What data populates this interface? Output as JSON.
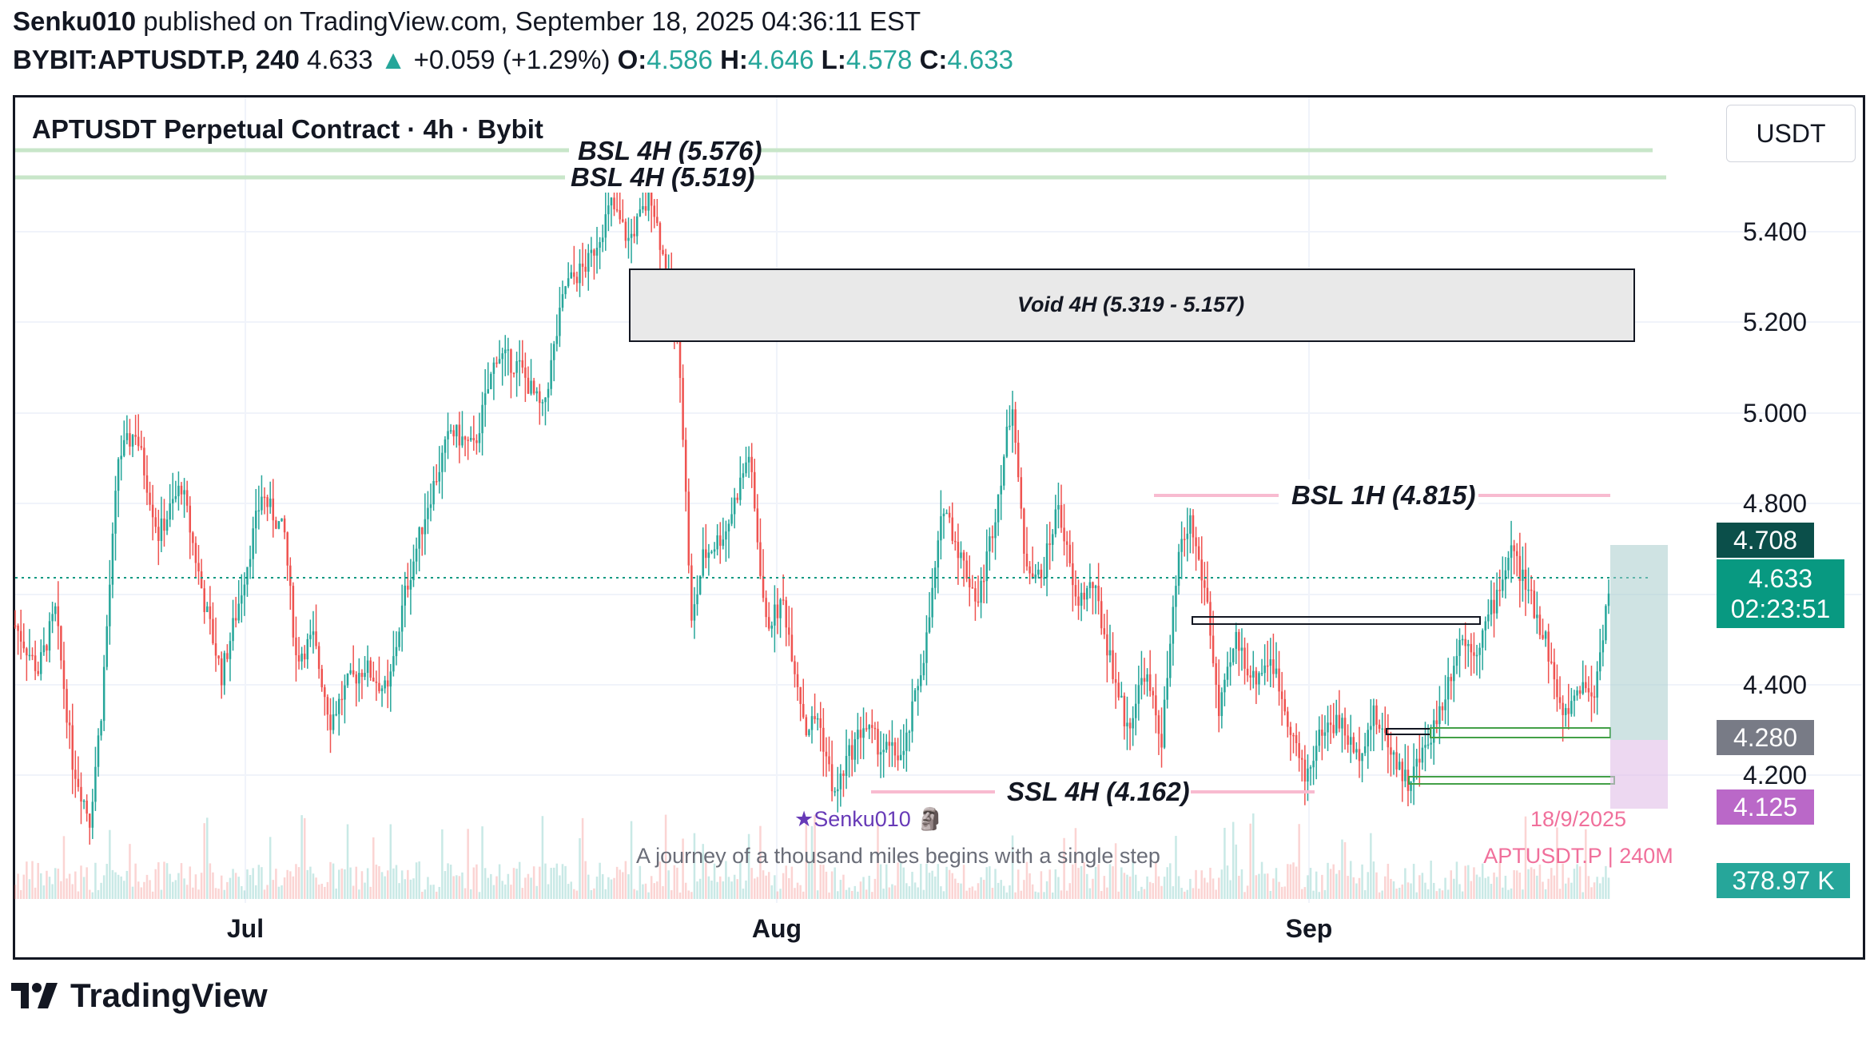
{
  "header": {
    "author": "Senku010",
    "published_text": "published on TradingView.com, September 18, 2025 04:36:11 EST",
    "symbol": "BYBIT:APTUSDT.P, 240",
    "last": "4.633",
    "change_icon": "triangle-up-icon",
    "change": "+0.059 (+1.29%)",
    "o_label": "O:",
    "o": "4.586",
    "h_label": "H:",
    "h": "4.646",
    "l_label": "L:",
    "l": "4.578",
    "c_label": "C:",
    "c": "4.633"
  },
  "chart": {
    "title": "APTUSDT Perpetual Contract · 4h · Bybit",
    "currency": "USDT",
    "watermark_user": "★Senku010 🗿",
    "tagline": "A journey of a thousand miles begins with a single step",
    "date_stamp": "18/9/2025",
    "symbol_stamp": "APTUSDT.P | 240M",
    "labels": {
      "bsl_4h_a": "BSL 4H (5.576)",
      "bsl_4h_b": "BSL 4H (5.519)",
      "void": "Void 4H (5.319 - 5.157)",
      "bsl_1h": "BSL 1H (4.815)",
      "ssl_4h": "SSL 4H (4.162)"
    },
    "price_badges": {
      "target": "4.708",
      "current": "4.633",
      "countdown": "02:23:51",
      "stop": "4.280",
      "low": "4.125",
      "volume": "378.97 K"
    },
    "colors": {
      "up": "#26a69a",
      "down": "#ef5350",
      "bsl4h": "#c8e6c9",
      "bsl1h": "#f8bbd0",
      "target_badge": "#0b4f4a",
      "current_badge": "#089981",
      "stop_badge": "#787b86",
      "low_badge": "#ba68c8",
      "volume_badge": "#26a69a"
    }
  },
  "footer": {
    "logo_icon": "tradingview-logo-icon",
    "brand": "TradingView"
  },
  "chart_data": {
    "type": "candlestick",
    "title": "APTUSDT Perpetual Contract · 4h · Bybit",
    "ylim": [
      4.05,
      5.62
    ],
    "y_ticks": [
      "5.400",
      "5.200",
      "5.000",
      "4.800",
      "4.400",
      "4.200"
    ],
    "x_ticks": [
      "Jul",
      "Aug",
      "Sep"
    ],
    "anchor_path": [
      [
        0,
        4.55
      ],
      [
        8,
        4.45
      ],
      [
        14,
        4.58
      ],
      [
        20,
        4.25
      ],
      [
        26,
        4.12
      ],
      [
        30,
        4.36
      ],
      [
        36,
        4.92
      ],
      [
        42,
        4.98
      ],
      [
        50,
        4.75
      ],
      [
        58,
        4.86
      ],
      [
        66,
        4.6
      ],
      [
        72,
        4.44
      ],
      [
        78,
        4.6
      ],
      [
        86,
        4.84
      ],
      [
        94,
        4.75
      ],
      [
        98,
        4.48
      ],
      [
        104,
        4.52
      ],
      [
        110,
        4.34
      ],
      [
        116,
        4.42
      ],
      [
        122,
        4.46
      ],
      [
        130,
        4.4
      ],
      [
        136,
        4.62
      ],
      [
        144,
        4.82
      ],
      [
        152,
        4.98
      ],
      [
        160,
        4.94
      ],
      [
        168,
        5.15
      ],
      [
        176,
        5.12
      ],
      [
        184,
        5.02
      ],
      [
        192,
        5.3
      ],
      [
        200,
        5.35
      ],
      [
        208,
        5.48
      ],
      [
        214,
        5.4
      ],
      [
        222,
        5.5
      ],
      [
        228,
        5.3
      ],
      [
        232,
        5.12
      ],
      [
        236,
        4.55
      ],
      [
        240,
        4.7
      ],
      [
        248,
        4.76
      ],
      [
        256,
        4.93
      ],
      [
        262,
        4.55
      ],
      [
        268,
        4.6
      ],
      [
        276,
        4.32
      ],
      [
        280,
        4.35
      ],
      [
        286,
        4.17
      ],
      [
        290,
        4.25
      ],
      [
        296,
        4.33
      ],
      [
        302,
        4.28
      ],
      [
        310,
        4.26
      ],
      [
        318,
        4.52
      ],
      [
        324,
        4.82
      ],
      [
        330,
        4.7
      ],
      [
        336,
        4.6
      ],
      [
        342,
        4.8
      ],
      [
        348,
        5.05
      ],
      [
        352,
        4.7
      ],
      [
        358,
        4.65
      ],
      [
        364,
        4.82
      ],
      [
        370,
        4.6
      ],
      [
        376,
        4.64
      ],
      [
        382,
        4.48
      ],
      [
        388,
        4.32
      ],
      [
        394,
        4.45
      ],
      [
        400,
        4.3
      ],
      [
        406,
        4.7
      ],
      [
        410,
        4.78
      ],
      [
        416,
        4.6
      ],
      [
        420,
        4.35
      ],
      [
        426,
        4.52
      ],
      [
        432,
        4.43
      ],
      [
        438,
        4.48
      ],
      [
        444,
        4.35
      ],
      [
        450,
        4.21
      ],
      [
        456,
        4.32
      ],
      [
        462,
        4.34
      ],
      [
        468,
        4.26
      ],
      [
        474,
        4.35
      ],
      [
        480,
        4.28
      ],
      [
        486,
        4.2
      ],
      [
        492,
        4.28
      ],
      [
        498,
        4.38
      ],
      [
        504,
        4.52
      ],
      [
        510,
        4.5
      ],
      [
        516,
        4.6
      ],
      [
        522,
        4.72
      ],
      [
        528,
        4.62
      ],
      [
        534,
        4.52
      ],
      [
        540,
        4.34
      ],
      [
        546,
        4.42
      ],
      [
        551,
        4.4
      ],
      [
        556,
        4.633
      ]
    ],
    "levels": [
      {
        "label": "BSL 4H",
        "value": 5.576
      },
      {
        "label": "BSL 4H",
        "value": 5.519
      },
      {
        "label": "Void 4H",
        "from": 5.157,
        "to": 5.319
      },
      {
        "label": "BSL 1H",
        "value": 4.815
      },
      {
        "label": "SSL 4H",
        "value": 4.162
      }
    ],
    "trade_plan": {
      "target": 4.708,
      "entry": 4.633,
      "stop": 4.28,
      "low": 4.125
    },
    "last_volume": "378.97 K"
  }
}
